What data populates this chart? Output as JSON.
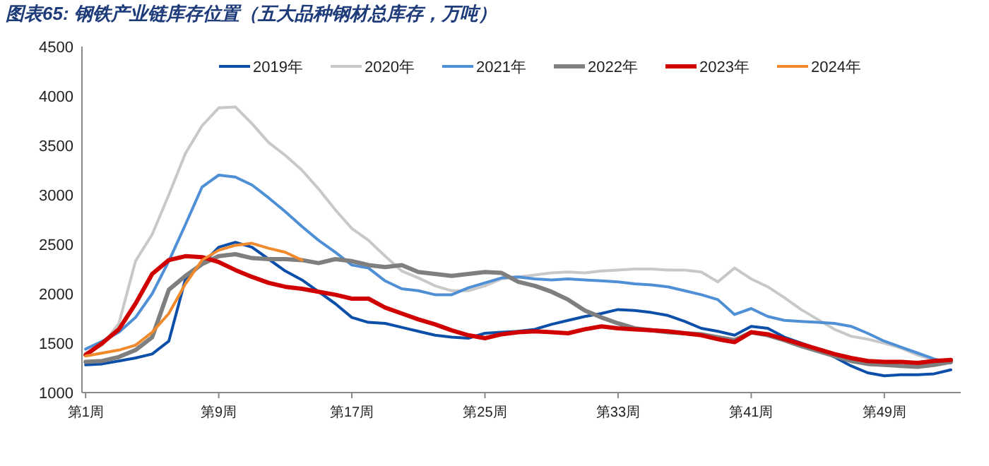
{
  "chart_data": {
    "type": "line",
    "title": "图表65:  钢铁产业链库存位置（五大品种钢材总库存，万吨）",
    "categories": [
      "第1周",
      null,
      null,
      null,
      null,
      null,
      null,
      null,
      "第9周",
      null,
      null,
      null,
      null,
      null,
      null,
      null,
      "第17周",
      null,
      null,
      null,
      null,
      null,
      null,
      null,
      "第25周",
      null,
      null,
      null,
      null,
      null,
      null,
      null,
      "第33周",
      null,
      null,
      null,
      null,
      null,
      null,
      null,
      "第41周",
      null,
      null,
      null,
      null,
      null,
      null,
      null,
      "第49周",
      null,
      null,
      null,
      null
    ],
    "ylim": [
      1000,
      4500
    ],
    "yticks": [
      1000,
      1500,
      2000,
      2500,
      3000,
      3500,
      4000,
      4500
    ],
    "grid": false,
    "legend": "top",
    "marker": "none",
    "line_style": "solid",
    "series": [
      {
        "name": "2019年",
        "color": "#0b4fa8",
        "values": [
          1280,
          1290,
          1320,
          1350,
          1390,
          1520,
          2150,
          2300,
          2470,
          2520,
          2470,
          2350,
          2230,
          2140,
          2020,
          1900,
          1760,
          1710,
          1700,
          1660,
          1620,
          1580,
          1560,
          1550,
          1600,
          1610,
          1620,
          1640,
          1690,
          1730,
          1770,
          1800,
          1840,
          1830,
          1810,
          1780,
          1720,
          1650,
          1620,
          1580,
          1670,
          1650,
          1560,
          1500,
          1440,
          1360,
          1270,
          1200,
          1170,
          1180,
          1180,
          1190,
          1230
        ]
      },
      {
        "name": "2020年",
        "color": "#c8c8c8",
        "values": [
          1400,
          1480,
          1700,
          2330,
          2600,
          3000,
          3420,
          3700,
          3880,
          3890,
          3720,
          3530,
          3400,
          3250,
          3060,
          2850,
          2660,
          2540,
          2380,
          2230,
          2160,
          2080,
          2030,
          2030,
          2080,
          2150,
          2170,
          2190,
          2210,
          2220,
          2210,
          2230,
          2240,
          2250,
          2250,
          2240,
          2240,
          2220,
          2120,
          2260,
          2150,
          2070,
          1960,
          1840,
          1740,
          1640,
          1570,
          1540,
          1500,
          1450,
          1380,
          1330,
          1310
        ]
      },
      {
        "name": "2021年",
        "color": "#4f8fd6",
        "values": [
          1440,
          1520,
          1610,
          1760,
          2000,
          2330,
          2700,
          3080,
          3200,
          3180,
          3100,
          2970,
          2830,
          2680,
          2540,
          2420,
          2290,
          2260,
          2130,
          2050,
          2030,
          1990,
          1990,
          2060,
          2110,
          2160,
          2170,
          2150,
          2140,
          2150,
          2140,
          2130,
          2120,
          2100,
          2090,
          2070,
          2030,
          1990,
          1940,
          1790,
          1850,
          1770,
          1730,
          1720,
          1710,
          1700,
          1670,
          1600,
          1520,
          1460,
          1400,
          1340,
          1300
        ]
      },
      {
        "name": "2022年",
        "color": "#7f7f7f",
        "values": [
          1310,
          1320,
          1360,
          1430,
          1560,
          2040,
          2180,
          2300,
          2380,
          2400,
          2360,
          2350,
          2350,
          2340,
          2310,
          2350,
          2330,
          2290,
          2270,
          2290,
          2220,
          2200,
          2180,
          2200,
          2220,
          2210,
          2120,
          2080,
          2020,
          1940,
          1830,
          1760,
          1700,
          1650,
          1630,
          1610,
          1600,
          1590,
          1560,
          1530,
          1610,
          1580,
          1530,
          1470,
          1420,
          1370,
          1320,
          1290,
          1280,
          1270,
          1260,
          1280,
          1310
        ]
      },
      {
        "name": "2023年",
        "color": "#d00000",
        "values": [
          1380,
          1500,
          1640,
          1900,
          2200,
          2340,
          2380,
          2370,
          2320,
          2240,
          2170,
          2110,
          2070,
          2050,
          2020,
          1990,
          1950,
          1950,
          1860,
          1800,
          1740,
          1690,
          1630,
          1580,
          1550,
          1590,
          1610,
          1620,
          1610,
          1600,
          1640,
          1670,
          1650,
          1640,
          1630,
          1620,
          1600,
          1580,
          1540,
          1510,
          1610,
          1590,
          1540,
          1490,
          1440,
          1390,
          1350,
          1320,
          1310,
          1310,
          1300,
          1320,
          1330
        ]
      },
      {
        "name": "2024年",
        "color": "#f08a2c",
        "values": [
          1370,
          1400,
          1430,
          1480,
          1610,
          1800,
          2100,
          2340,
          2440,
          2490,
          2510,
          2460,
          2420,
          2340,
          null,
          null,
          null,
          null,
          null,
          null,
          null,
          null,
          null,
          null,
          null,
          null,
          null,
          null,
          null,
          null,
          null,
          null,
          null,
          null,
          null,
          null,
          null,
          null,
          null,
          null,
          null,
          null,
          null,
          null,
          null,
          null,
          null,
          null,
          null,
          null,
          null,
          null,
          null
        ]
      }
    ]
  }
}
